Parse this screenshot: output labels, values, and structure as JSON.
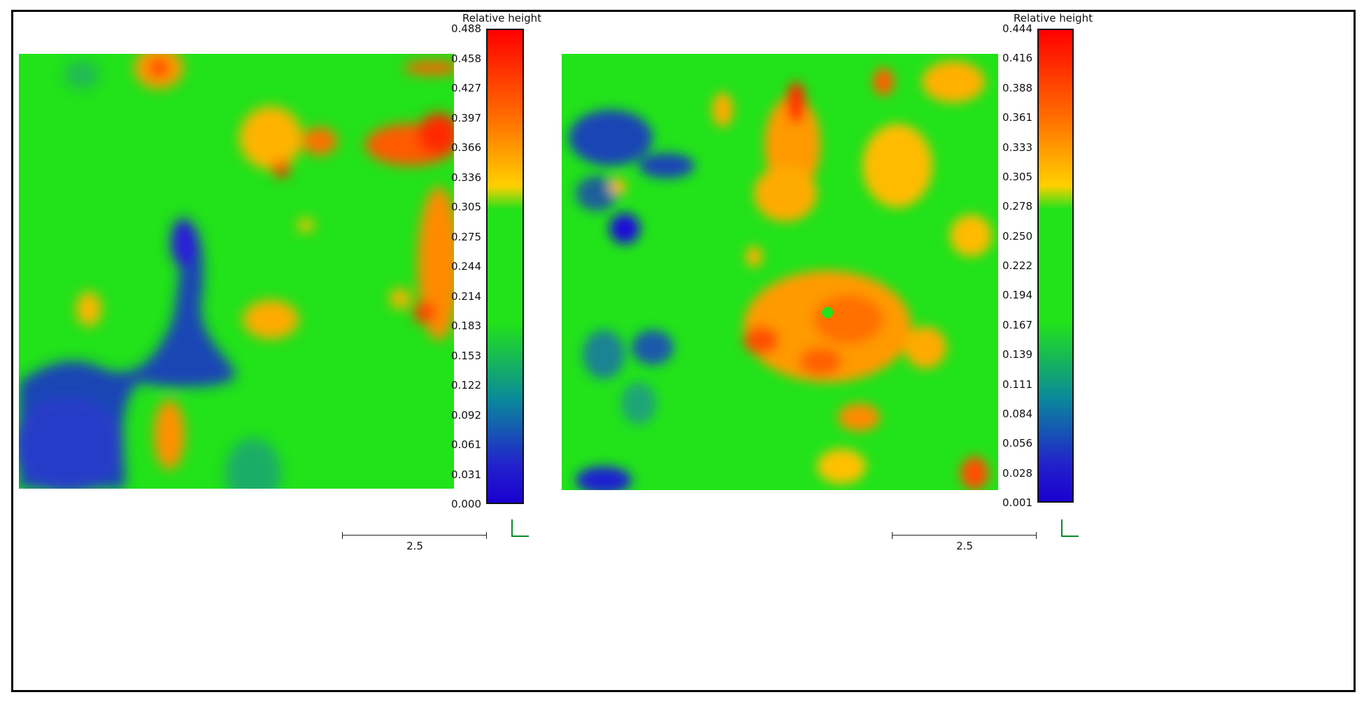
{
  "panels": [
    {
      "colorbar_title": "Relative height",
      "ticks": [
        "0.488",
        "0.458",
        "0.427",
        "0.397",
        "0.366",
        "0.336",
        "0.305",
        "0.275",
        "0.244",
        "0.214",
        "0.183",
        "0.153",
        "0.122",
        "0.092",
        "0.061",
        "0.031",
        "0.000"
      ],
      "scale_label": "2.5"
    },
    {
      "colorbar_title": "Relative height",
      "ticks": [
        "0.444",
        "0.416",
        "0.388",
        "0.361",
        "0.333",
        "0.305",
        "0.278",
        "0.250",
        "0.222",
        "0.194",
        "0.167",
        "0.139",
        "0.111",
        "0.084",
        "0.056",
        "0.028",
        "0.001"
      ],
      "scale_label": "2.5"
    }
  ],
  "colors": {
    "colorbar_stops": [
      "#ff0000",
      "#ff6a00",
      "#ffd000",
      "#22e21a",
      "#22e21a",
      "#0a8a9a",
      "#2222cc",
      "#1a00d0"
    ],
    "surface_base": "#22e21a",
    "axis_icon": "#0a8a2a"
  }
}
